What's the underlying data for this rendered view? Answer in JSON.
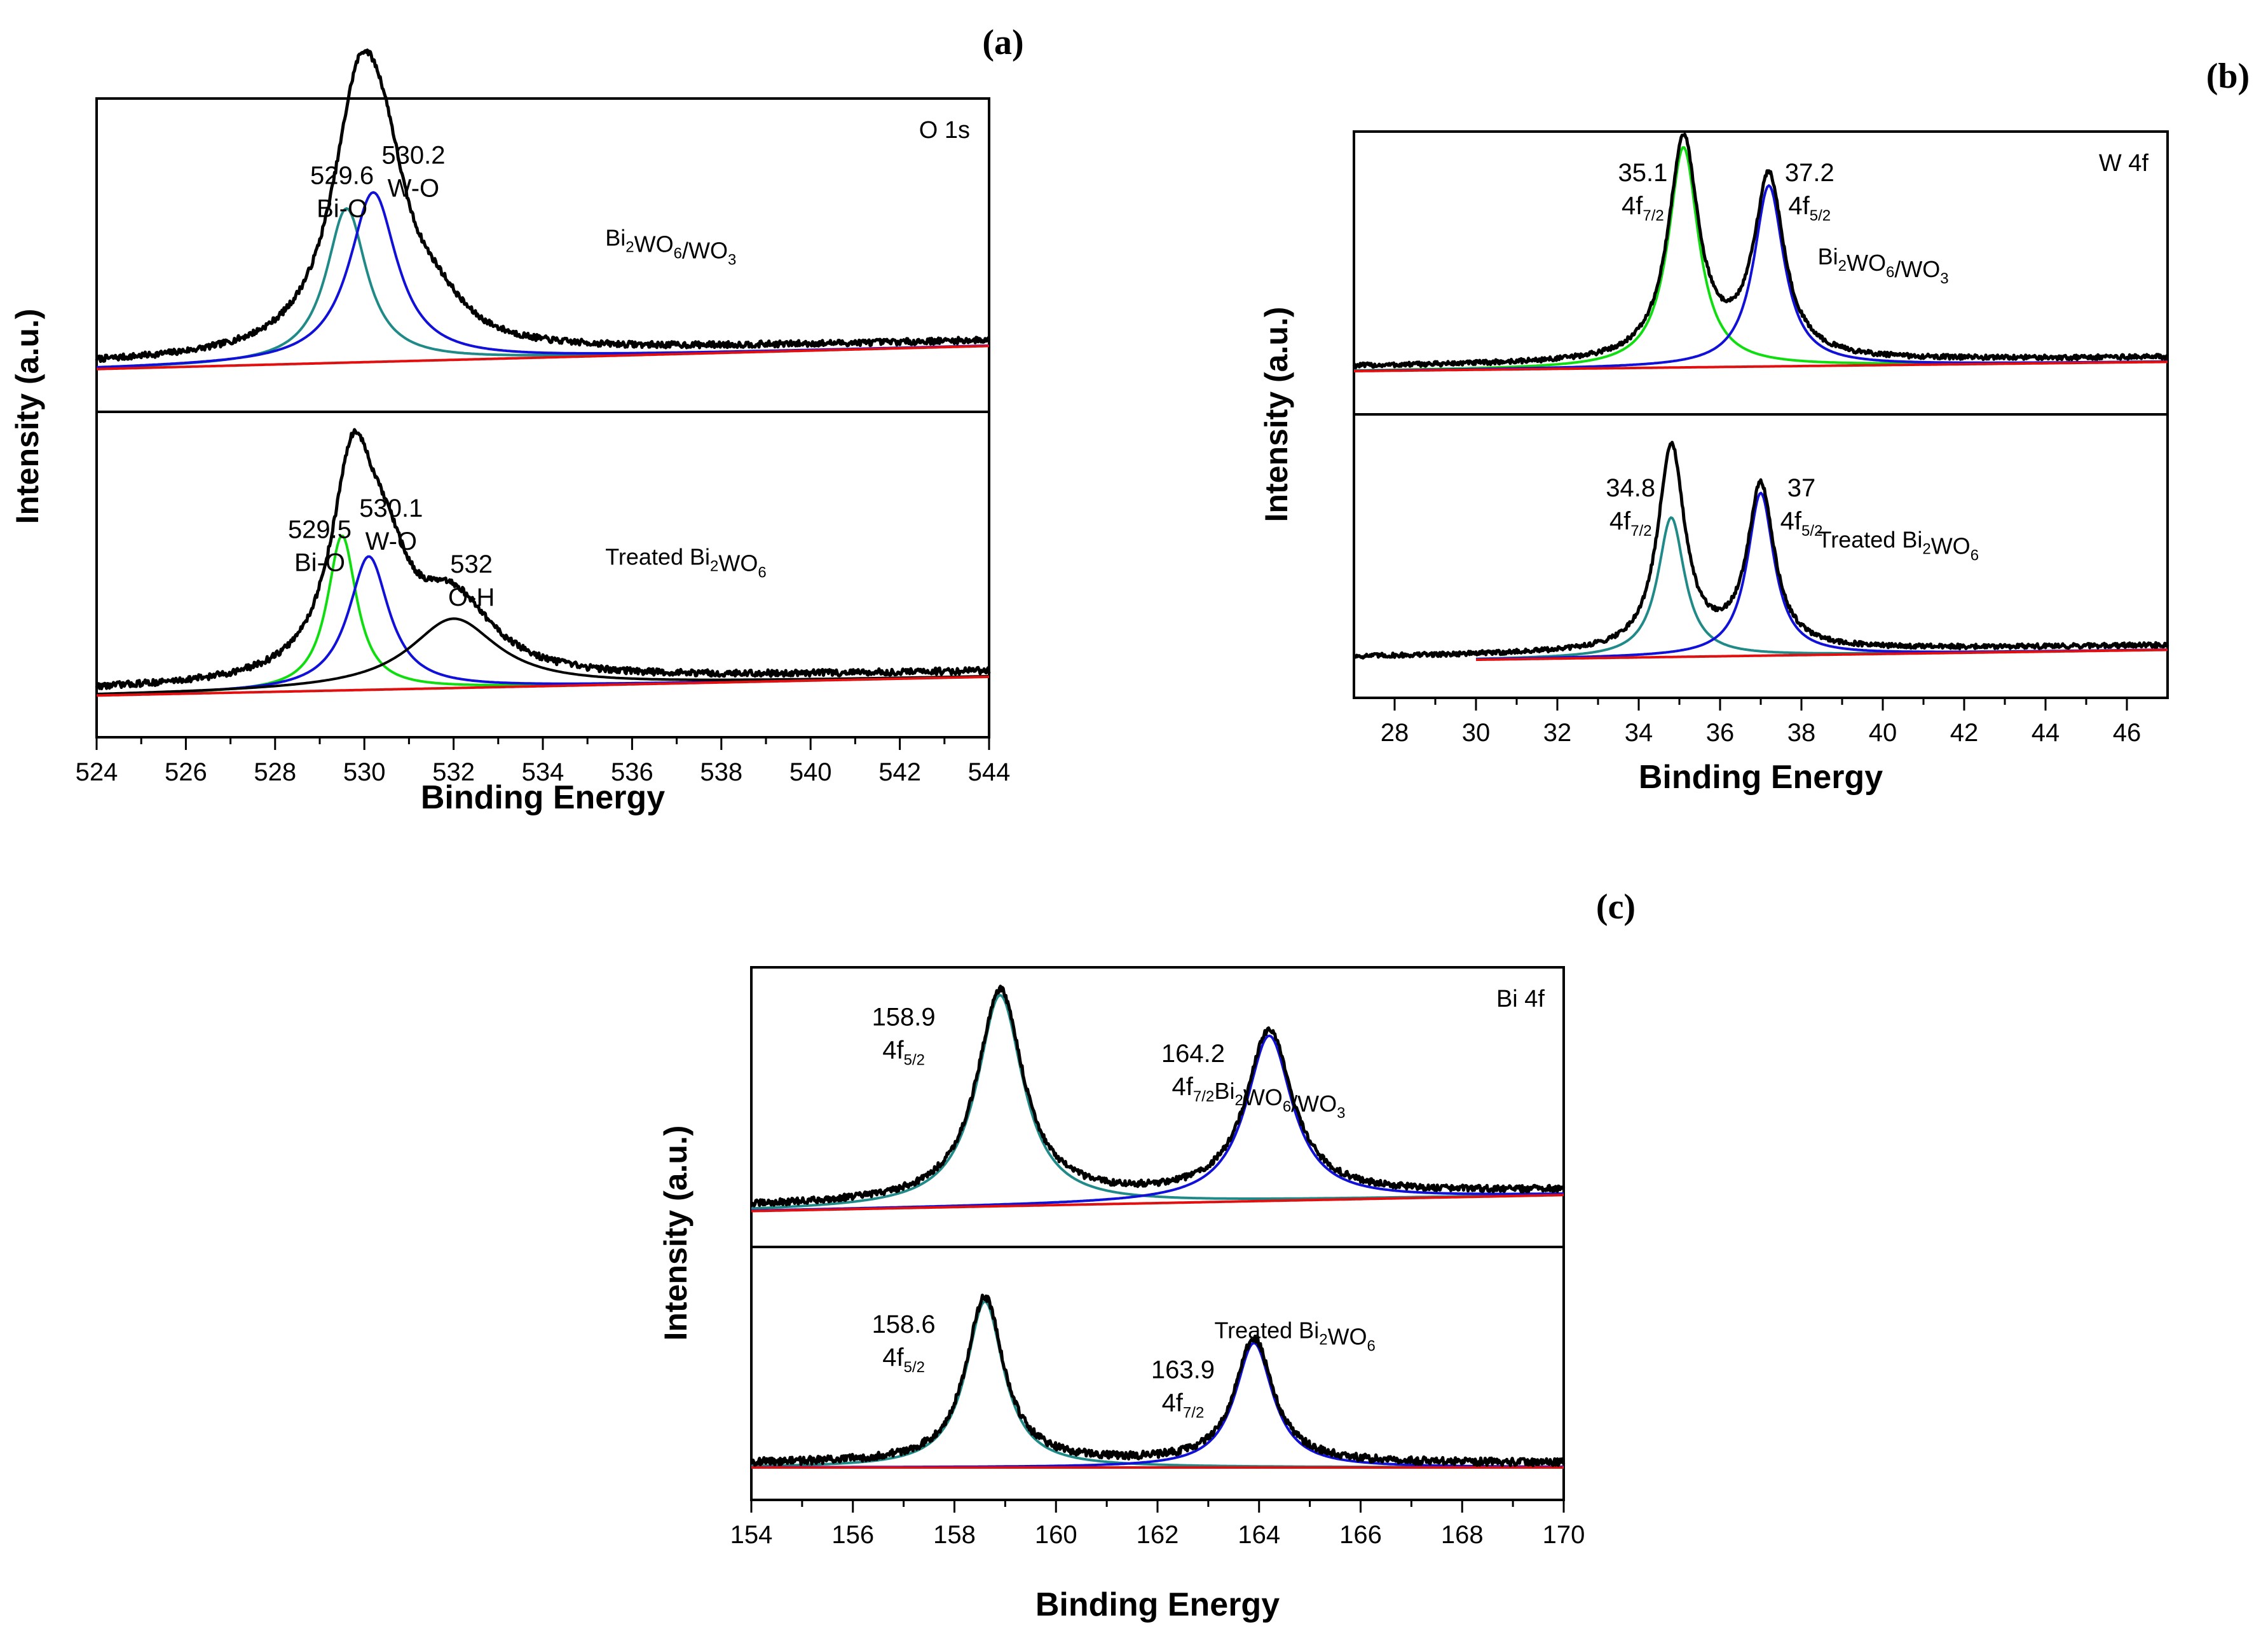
{
  "chart_data": [
    {
      "type": "line",
      "panel": "(a)",
      "core_level": "O 1s",
      "xlabel": "Binding Energy",
      "ylabel": "Intensity (a.u.)",
      "xlim": [
        524,
        544
      ],
      "xticks": [
        524,
        526,
        528,
        530,
        532,
        534,
        536,
        538,
        540,
        542,
        544
      ],
      "subplots": [
        {
          "sample": {
            "pre": "Bi",
            "s1": "2",
            "mid": "WO",
            "s2": "6",
            "post": "/WO",
            "s3": "3"
          },
          "baseline": {
            "y0": 0.04,
            "y1": 0.13
          },
          "data_peaks": [
            {
              "c": 529.9,
              "h": 0.98,
              "w": 0.75
            },
            {
              "c": 530.5,
              "h": 0.35,
              "w": 0.6
            },
            {
              "c": 531.6,
              "h": 0.12,
              "w": 0.8
            }
          ],
          "noise": 0.012,
          "components": [
            {
              "name": "Bi-O",
              "color": "#1f8a87",
              "center": 529.6,
              "height": 0.6,
              "width": 0.55
            },
            {
              "name": "W-O",
              "color": "#1010d8",
              "center": 530.2,
              "height": 0.66,
              "width": 0.65
            },
            {
              "name": "Background",
              "color": "#e01010",
              "center": null,
              "height": 0,
              "width": 0
            }
          ],
          "labels": [
            {
              "l1": "529.6",
              "l2": "Bi-O",
              "x": 529.5,
              "y": 0.74
            },
            {
              "l1": "530.2",
              "l2": "W-O",
              "x": 531.1,
              "y": 0.82
            }
          ]
        },
        {
          "sample": {
            "pre": "Treated Bi",
            "s1": "2",
            "mid": "WO",
            "s2": "6",
            "post": "",
            "s3": ""
          },
          "baseline": {
            "y0": 0.03,
            "y1": 0.1
          },
          "data_peaks": [
            {
              "c": 529.75,
              "h": 0.78,
              "w": 0.6
            },
            {
              "c": 530.5,
              "h": 0.28,
              "w": 0.6
            },
            {
              "c": 532.0,
              "h": 0.28,
              "w": 1.1
            }
          ],
          "noise": 0.012,
          "components": [
            {
              "name": "Bi-O",
              "color": "#10dd10",
              "center": 529.5,
              "height": 0.58,
              "width": 0.4
            },
            {
              "name": "W-O",
              "color": "#1010d8",
              "center": 530.1,
              "height": 0.5,
              "width": 0.55
            },
            {
              "name": "O-H",
              "color": "#000000",
              "center": 532.0,
              "height": 0.26,
              "width": 1.2
            },
            {
              "name": "Background",
              "color": "#e01010",
              "center": null,
              "height": 0,
              "width": 0
            }
          ],
          "labels": [
            {
              "l1": "529.5",
              "l2": "Bi-O",
              "x": 529.0,
              "y": 0.6
            },
            {
              "l1": "530.1",
              "l2": "W-O",
              "x": 530.6,
              "y": 0.68
            },
            {
              "l1": "532",
              "l2": "O-H",
              "x": 532.4,
              "y": 0.47
            }
          ]
        }
      ]
    },
    {
      "type": "line",
      "panel": "(b)",
      "core_level": "W 4f",
      "xlabel": "Binding Energy",
      "ylabel": "Intensity (a.u.)",
      "xlim": [
        27,
        47
      ],
      "xticks": [
        28,
        30,
        32,
        34,
        36,
        38,
        40,
        42,
        44,
        46
      ],
      "subplots": [
        {
          "sample": {
            "pre": "Bi",
            "s1": "2",
            "mid": "WO",
            "s2": "6",
            "post": "/WO",
            "s3": "3"
          },
          "baseline": {
            "y0": 0.06,
            "y1": 0.1
          },
          "data_peaks": [
            {
              "c": 35.1,
              "h": 0.95,
              "w": 0.45
            },
            {
              "c": 37.2,
              "h": 0.78,
              "w": 0.45
            }
          ],
          "noise": 0.01,
          "components": [
            {
              "name": "4f7/2",
              "color": "#10dd10",
              "center": 35.1,
              "height": 0.95,
              "width": 0.45
            },
            {
              "name": "4f5/2",
              "color": "#1010d8",
              "center": 37.2,
              "height": 0.78,
              "width": 0.45
            },
            {
              "name": "Background",
              "color": "#e01010",
              "center": null,
              "height": 0,
              "width": 0
            }
          ],
          "labels": [
            {
              "l1": "35.1",
              "l2": "4f",
              "sub": "7/2",
              "x": 34.1,
              "y": 0.86
            },
            {
              "l1": "37.2",
              "l2": "4f",
              "sub": "5/2",
              "x": 38.2,
              "y": 0.86
            }
          ]
        },
        {
          "sample": {
            "pre": "Treated Bi",
            "s1": "2",
            "mid": "WO",
            "s2": "6",
            "post": "",
            "s3": ""
          },
          "baseline": {
            "y0": 0.03,
            "y1": 0.08
          },
          "data_peaks": [
            {
              "c": 34.8,
              "h": 0.88,
              "w": 0.4
            },
            {
              "c": 37.0,
              "h": 0.7,
              "w": 0.4
            }
          ],
          "noise": 0.01,
          "components": [
            {
              "name": "4f7/2",
              "color": "#1f8a87",
              "center": 34.8,
              "height": 0.6,
              "width": 0.4
            },
            {
              "name": "4f5/2",
              "color": "#1010d8",
              "center": 37.0,
              "height": 0.7,
              "width": 0.4
            },
            {
              "name": "Background",
              "color": "#e01010",
              "center": null,
              "height": 0,
              "width": 0
            }
          ],
          "labels": [
            {
              "l1": "34.8",
              "l2": "4f",
              "sub": "7/2",
              "x": 33.8,
              "y": 0.72
            },
            {
              "l1": "37",
              "l2": "4f",
              "sub": "5/2",
              "x": 38.0,
              "y": 0.72
            }
          ]
        }
      ]
    },
    {
      "type": "line",
      "panel": "(c)",
      "core_level": "Bi 4f",
      "xlabel": "Binding Energy",
      "ylabel": "Intensity (a.u.)",
      "xlim": [
        154,
        170
      ],
      "xticks": [
        154,
        156,
        158,
        160,
        162,
        164,
        166,
        168,
        170
      ],
      "subplots": [
        {
          "sample": {
            "pre": "Bi",
            "s1": "2",
            "mid": "WO",
            "s2": "6",
            "post": "/WO",
            "s3": "3"
          },
          "baseline": {
            "y0": 0.03,
            "y1": 0.1
          },
          "data_peaks": [
            {
              "c": 158.9,
              "h": 0.92,
              "w": 0.55
            },
            {
              "c": 164.2,
              "h": 0.72,
              "w": 0.55
            }
          ],
          "noise": 0.014,
          "components": [
            {
              "name": "4f5/2",
              "color": "#1f8a87",
              "center": 158.9,
              "height": 0.92,
              "width": 0.55
            },
            {
              "name": "4f7/2",
              "color": "#1010d8",
              "center": 164.2,
              "height": 0.72,
              "width": 0.55
            },
            {
              "name": "Background",
              "color": "#e01010",
              "center": null,
              "height": 0,
              "width": 0
            }
          ],
          "labels": [
            {
              "l1": "158.9",
              "l2": "4f",
              "sub": "5/2",
              "x": 157.0,
              "y": 0.82
            },
            {
              "l1": "164.2",
              "l2": "4f",
              "sub": "7/2",
              "x": 162.7,
              "y": 0.66
            }
          ]
        },
        {
          "sample": {
            "pre": "Treated Bi",
            "s1": "2",
            "mid": "WO",
            "s2": "6",
            "post": "",
            "s3": ""
          },
          "baseline": {
            "y0": 0.03,
            "y1": 0.03
          },
          "data_peaks": [
            {
              "c": 158.6,
              "h": 0.8,
              "w": 0.45
            },
            {
              "c": 163.9,
              "h": 0.6,
              "w": 0.45
            }
          ],
          "noise": 0.018,
          "components": [
            {
              "name": "4f5/2",
              "color": "#1f8a87",
              "center": 158.6,
              "height": 0.8,
              "width": 0.45
            },
            {
              "name": "4f7/2",
              "color": "#1010d8",
              "center": 163.9,
              "height": 0.6,
              "width": 0.45
            },
            {
              "name": "Background",
              "color": "#e01010",
              "center": null,
              "height": 0,
              "width": 0
            }
          ],
          "labels": [
            {
              "l1": "158.6",
              "l2": "4f",
              "sub": "5/2",
              "x": 157.0,
              "y": 0.66
            },
            {
              "l1": "163.9",
              "l2": "4f",
              "sub": "7/2",
              "x": 162.5,
              "y": 0.44
            }
          ]
        }
      ]
    }
  ]
}
